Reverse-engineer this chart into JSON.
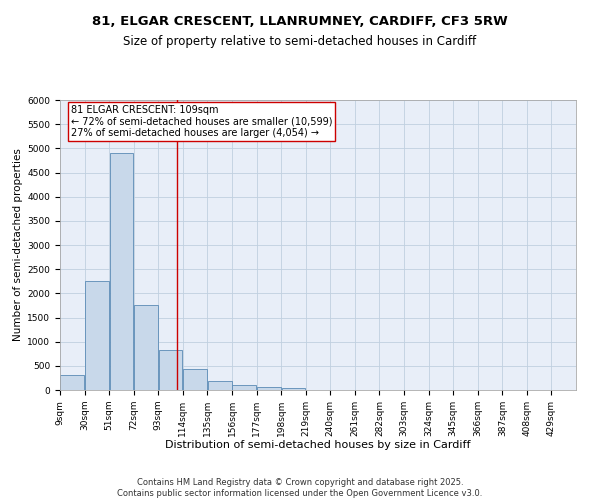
{
  "title1": "81, ELGAR CRESCENT, LLANRUMNEY, CARDIFF, CF3 5RW",
  "title2": "Size of property relative to semi-detached houses in Cardiff",
  "xlabel": "Distribution of semi-detached houses by size in Cardiff",
  "ylabel": "Number of semi-detached properties",
  "footnote": "Contains HM Land Registry data © Crown copyright and database right 2025.\nContains public sector information licensed under the Open Government Licence v3.0.",
  "bin_labels": [
    "9sqm",
    "30sqm",
    "51sqm",
    "72sqm",
    "93sqm",
    "114sqm",
    "135sqm",
    "156sqm",
    "177sqm",
    "198sqm",
    "219sqm",
    "240sqm",
    "261sqm",
    "282sqm",
    "303sqm",
    "324sqm",
    "345sqm",
    "366sqm",
    "387sqm",
    "408sqm",
    "429sqm"
  ],
  "bin_edges": [
    9,
    30,
    51,
    72,
    93,
    114,
    135,
    156,
    177,
    198,
    219,
    240,
    261,
    282,
    303,
    324,
    345,
    366,
    387,
    408,
    429
  ],
  "bar_heights": [
    310,
    2250,
    4900,
    1750,
    820,
    430,
    180,
    95,
    65,
    50,
    0,
    0,
    0,
    0,
    0,
    0,
    0,
    0,
    0,
    0
  ],
  "bar_color": "#c8d8ea",
  "bar_edge_color": "#5a8ab5",
  "property_size": 109,
  "vline_color": "#cc0000",
  "annotation_text": "81 ELGAR CRESCENT: 109sqm\n← 72% of semi-detached houses are smaller (10,599)\n27% of semi-detached houses are larger (4,054) →",
  "annotation_box_color": "#cc0000",
  "ylim": [
    0,
    6000
  ],
  "yticks": [
    0,
    500,
    1000,
    1500,
    2000,
    2500,
    3000,
    3500,
    4000,
    4500,
    5000,
    5500,
    6000
  ],
  "grid_color": "#c0d0e0",
  "bg_color": "#e8eef8",
  "title1_fontsize": 9.5,
  "title2_fontsize": 8.5,
  "xlabel_fontsize": 8,
  "ylabel_fontsize": 7.5,
  "tick_fontsize": 6.5,
  "ann_fontsize": 7,
  "footnote_fontsize": 6
}
